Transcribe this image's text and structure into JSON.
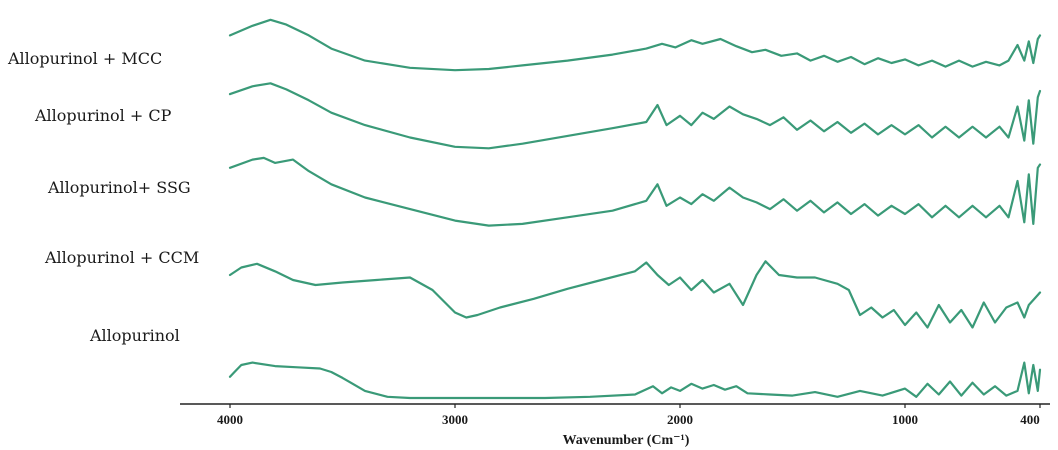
{
  "chart_data": {
    "type": "line",
    "title": "",
    "xlabel": "Wavenumber (Cm⁻¹)",
    "ylabel": "",
    "xlim": [
      4000,
      400
    ],
    "x_reversed": true,
    "x_ticks": [
      4000,
      3000,
      2000,
      1000,
      400
    ],
    "x_tick_labels": [
      "4000",
      "3000",
      "2000",
      "1000",
      "400"
    ],
    "grid": false,
    "line_color": "#3a9a78",
    "series": [
      {
        "name": "Allopurinol + MCC",
        "x": [
          4000,
          3900,
          3820,
          3750,
          3650,
          3550,
          3400,
          3200,
          3000,
          2850,
          2700,
          2500,
          2300,
          2150,
          2080,
          2020,
          1950,
          1900,
          1820,
          1750,
          1680,
          1620,
          1550,
          1480,
          1420,
          1360,
          1300,
          1240,
          1180,
          1120,
          1060,
          1000,
          940,
          880,
          820,
          760,
          700,
          640,
          580,
          540,
          500,
          470,
          450,
          430,
          410,
          400
        ],
        "y": [
          0.83,
          0.91,
          0.96,
          0.92,
          0.83,
          0.72,
          0.62,
          0.56,
          0.54,
          0.55,
          0.58,
          0.62,
          0.67,
          0.72,
          0.76,
          0.73,
          0.79,
          0.76,
          0.8,
          0.74,
          0.69,
          0.71,
          0.66,
          0.68,
          0.62,
          0.66,
          0.61,
          0.65,
          0.59,
          0.64,
          0.6,
          0.63,
          0.58,
          0.62,
          0.57,
          0.62,
          0.57,
          0.61,
          0.58,
          0.62,
          0.75,
          0.62,
          0.78,
          0.6,
          0.8,
          0.83
        ]
      },
      {
        "name": "Allopurinol + CP",
        "x": [
          4000,
          3900,
          3820,
          3750,
          3650,
          3550,
          3400,
          3200,
          3000,
          2850,
          2700,
          2500,
          2300,
          2150,
          2100,
          2060,
          2000,
          1950,
          1900,
          1850,
          1780,
          1720,
          1660,
          1600,
          1540,
          1480,
          1420,
          1360,
          1300,
          1240,
          1180,
          1120,
          1060,
          1000,
          940,
          880,
          820,
          760,
          700,
          640,
          580,
          540,
          500,
          470,
          450,
          430,
          410,
          400
        ],
        "y": [
          0.78,
          0.83,
          0.85,
          0.81,
          0.74,
          0.66,
          0.58,
          0.5,
          0.44,
          0.43,
          0.46,
          0.51,
          0.56,
          0.6,
          0.71,
          0.58,
          0.64,
          0.58,
          0.66,
          0.62,
          0.7,
          0.65,
          0.62,
          0.58,
          0.63,
          0.55,
          0.61,
          0.54,
          0.6,
          0.53,
          0.59,
          0.52,
          0.58,
          0.52,
          0.58,
          0.5,
          0.57,
          0.5,
          0.57,
          0.5,
          0.57,
          0.5,
          0.7,
          0.48,
          0.74,
          0.46,
          0.76,
          0.8
        ]
      },
      {
        "name": "Allopurinol+ SSG",
        "x": [
          4000,
          3900,
          3850,
          3800,
          3720,
          3650,
          3550,
          3400,
          3200,
          3000,
          2850,
          2700,
          2500,
          2300,
          2150,
          2100,
          2060,
          2000,
          1950,
          1900,
          1850,
          1780,
          1720,
          1660,
          1600,
          1540,
          1480,
          1420,
          1360,
          1300,
          1240,
          1180,
          1120,
          1060,
          1000,
          940,
          880,
          820,
          760,
          700,
          640,
          580,
          540,
          500,
          470,
          450,
          430,
          410,
          400
        ],
        "y": [
          0.68,
          0.73,
          0.74,
          0.71,
          0.73,
          0.66,
          0.58,
          0.5,
          0.43,
          0.36,
          0.33,
          0.34,
          0.38,
          0.42,
          0.48,
          0.58,
          0.45,
          0.5,
          0.46,
          0.52,
          0.48,
          0.56,
          0.5,
          0.47,
          0.43,
          0.49,
          0.42,
          0.48,
          0.41,
          0.47,
          0.4,
          0.46,
          0.39,
          0.45,
          0.4,
          0.46,
          0.38,
          0.45,
          0.38,
          0.45,
          0.38,
          0.45,
          0.38,
          0.6,
          0.35,
          0.64,
          0.34,
          0.68,
          0.7
        ]
      },
      {
        "name": "Allopurinol + CCM",
        "x": [
          4000,
          3950,
          3880,
          3800,
          3720,
          3620,
          3500,
          3350,
          3200,
          3100,
          3000,
          2950,
          2900,
          2800,
          2650,
          2500,
          2350,
          2200,
          2150,
          2100,
          2050,
          2000,
          1950,
          1900,
          1850,
          1780,
          1720,
          1660,
          1620,
          1560,
          1480,
          1400,
          1300,
          1250,
          1200,
          1150,
          1100,
          1050,
          1000,
          950,
          900,
          850,
          800,
          750,
          700,
          650,
          600,
          550,
          500,
          470,
          450,
          430,
          410,
          400
        ],
        "y": [
          0.52,
          0.58,
          0.61,
          0.55,
          0.48,
          0.44,
          0.46,
          0.48,
          0.5,
          0.4,
          0.22,
          0.18,
          0.2,
          0.26,
          0.33,
          0.41,
          0.48,
          0.55,
          0.62,
          0.52,
          0.44,
          0.5,
          0.4,
          0.48,
          0.38,
          0.45,
          0.28,
          0.52,
          0.63,
          0.52,
          0.5,
          0.5,
          0.45,
          0.4,
          0.2,
          0.26,
          0.18,
          0.24,
          0.12,
          0.22,
          0.1,
          0.28,
          0.14,
          0.24,
          0.1,
          0.3,
          0.14,
          0.26,
          0.3,
          0.18,
          0.28,
          0.32,
          0.36,
          0.38
        ]
      },
      {
        "name": "Allopurinol",
        "x": [
          4000,
          3980,
          3950,
          3900,
          3800,
          3700,
          3600,
          3550,
          3500,
          3400,
          3300,
          3200,
          3000,
          2800,
          2600,
          2400,
          2200,
          2120,
          2080,
          2040,
          2000,
          1950,
          1900,
          1850,
          1800,
          1750,
          1700,
          1600,
          1500,
          1400,
          1300,
          1200,
          1100,
          1000,
          950,
          900,
          850,
          800,
          750,
          700,
          650,
          600,
          550,
          500,
          470,
          450,
          430,
          410,
          400
        ],
        "y": [
          0.18,
          0.22,
          0.28,
          0.3,
          0.27,
          0.26,
          0.25,
          0.22,
          0.17,
          0.06,
          0.01,
          0.0,
          0.0,
          0.0,
          0.0,
          0.01,
          0.03,
          0.1,
          0.04,
          0.09,
          0.06,
          0.12,
          0.08,
          0.11,
          0.07,
          0.1,
          0.04,
          0.03,
          0.02,
          0.05,
          0.01,
          0.06,
          0.02,
          0.08,
          0.01,
          0.12,
          0.03,
          0.14,
          0.02,
          0.13,
          0.03,
          0.1,
          0.02,
          0.06,
          0.3,
          0.04,
          0.28,
          0.06,
          0.24
        ]
      }
    ]
  }
}
